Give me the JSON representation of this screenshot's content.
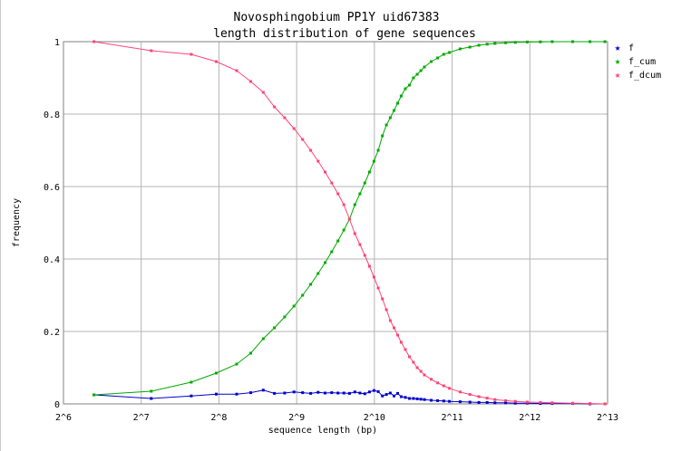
{
  "chart_data": {
    "type": "line",
    "title": "Novosphingobium PP1Y uid67383",
    "subtitle": "length distribution of gene sequences",
    "xlabel": "sequence length (bp)",
    "ylabel": "frequency",
    "x_scale": "log2",
    "xlim": [
      64,
      8192
    ],
    "ylim": [
      0,
      1
    ],
    "grid": true,
    "legend": "top-right",
    "x_ticks": [
      "2^6",
      "2^7",
      "2^8",
      "2^9",
      "2^10",
      "2^11",
      "2^12",
      "2^13"
    ],
    "y_ticks": [
      "0",
      "0.2",
      "0.4",
      "0.6",
      "0.8",
      "1"
    ],
    "series": [
      {
        "name": "f",
        "color": "#0000cc",
        "x": [
          84,
          140,
          200,
          250,
          300,
          340,
          380,
          420,
          460,
          500,
          540,
          580,
          620,
          660,
          700,
          740,
          780,
          820,
          860,
          900,
          940,
          980,
          1020,
          1060,
          1100,
          1140,
          1180,
          1220,
          1260,
          1300,
          1350,
          1400,
          1450,
          1500,
          1550,
          1600,
          1700,
          1800,
          1900,
          2000,
          2200,
          2400,
          2600,
          2800,
          3000,
          3300,
          3600,
          4000,
          4500,
          5000,
          6000,
          7000,
          8000
        ],
        "y": [
          0.025,
          0.015,
          0.022,
          0.027,
          0.027,
          0.031,
          0.038,
          0.029,
          0.03,
          0.033,
          0.031,
          0.029,
          0.032,
          0.03,
          0.031,
          0.03,
          0.03,
          0.029,
          0.033,
          0.03,
          0.028,
          0.033,
          0.037,
          0.034,
          0.022,
          0.026,
          0.03,
          0.022,
          0.029,
          0.02,
          0.018,
          0.015,
          0.015,
          0.014,
          0.013,
          0.012,
          0.01,
          0.009,
          0.008,
          0.007,
          0.006,
          0.005,
          0.004,
          0.004,
          0.003,
          0.003,
          0.002,
          0.002,
          0.001,
          0.001,
          0.001,
          0.0,
          0.0
        ]
      },
      {
        "name": "f_cum",
        "color": "#00aa00",
        "x": [
          84,
          140,
          200,
          250,
          300,
          340,
          380,
          420,
          460,
          500,
          540,
          580,
          620,
          660,
          700,
          740,
          780,
          820,
          860,
          900,
          940,
          980,
          1020,
          1060,
          1100,
          1140,
          1180,
          1220,
          1260,
          1300,
          1350,
          1400,
          1450,
          1500,
          1550,
          1600,
          1700,
          1800,
          1900,
          2000,
          2200,
          2400,
          2600,
          2800,
          3000,
          3300,
          3600,
          4000,
          4500,
          5000,
          6000,
          7000,
          8000
        ],
        "y": [
          0.025,
          0.035,
          0.06,
          0.085,
          0.11,
          0.14,
          0.18,
          0.21,
          0.24,
          0.27,
          0.3,
          0.33,
          0.36,
          0.39,
          0.42,
          0.45,
          0.48,
          0.51,
          0.55,
          0.58,
          0.61,
          0.64,
          0.67,
          0.7,
          0.74,
          0.77,
          0.79,
          0.81,
          0.83,
          0.85,
          0.87,
          0.88,
          0.9,
          0.91,
          0.92,
          0.93,
          0.945,
          0.955,
          0.965,
          0.97,
          0.98,
          0.985,
          0.99,
          0.993,
          0.995,
          0.997,
          0.998,
          0.999,
          0.9995,
          1.0,
          1.0,
          1.0,
          1.0
        ]
      },
      {
        "name": "f_dcum",
        "color": "#ff4477",
        "x": [
          84,
          140,
          200,
          250,
          300,
          340,
          380,
          420,
          460,
          500,
          540,
          580,
          620,
          660,
          700,
          740,
          780,
          820,
          860,
          900,
          940,
          980,
          1020,
          1060,
          1100,
          1140,
          1180,
          1220,
          1260,
          1300,
          1350,
          1400,
          1450,
          1500,
          1550,
          1600,
          1700,
          1800,
          1900,
          2000,
          2200,
          2400,
          2600,
          2800,
          3000,
          3300,
          3600,
          4000,
          4500,
          5000,
          6000,
          7000,
          8000
        ],
        "y": [
          1.0,
          0.975,
          0.965,
          0.945,
          0.92,
          0.89,
          0.86,
          0.82,
          0.79,
          0.76,
          0.73,
          0.7,
          0.67,
          0.64,
          0.61,
          0.58,
          0.55,
          0.51,
          0.47,
          0.44,
          0.41,
          0.38,
          0.35,
          0.32,
          0.29,
          0.26,
          0.23,
          0.21,
          0.19,
          0.17,
          0.15,
          0.13,
          0.115,
          0.1,
          0.09,
          0.08,
          0.068,
          0.058,
          0.05,
          0.043,
          0.033,
          0.026,
          0.02,
          0.016,
          0.012,
          0.009,
          0.007,
          0.005,
          0.004,
          0.003,
          0.002,
          0.001,
          0.0
        ]
      }
    ]
  }
}
